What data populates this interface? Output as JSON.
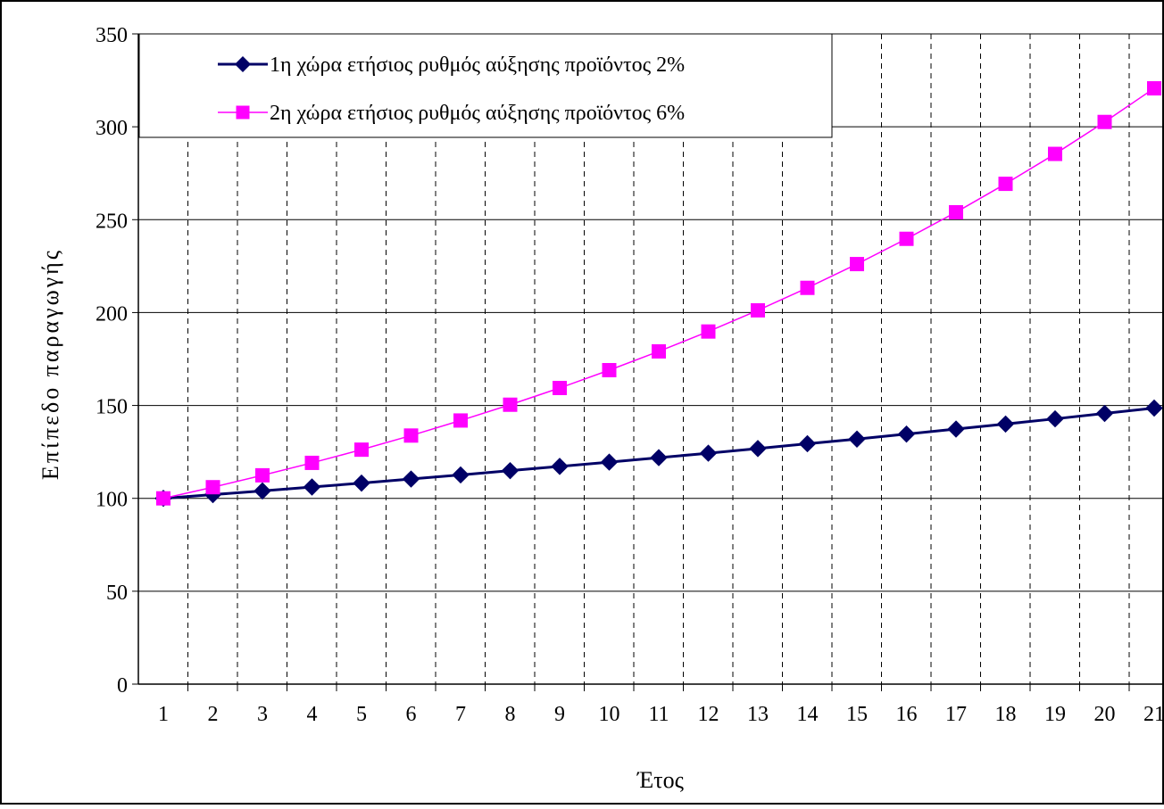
{
  "chart_data": {
    "type": "line",
    "xlabel": "Έτος",
    "ylabel": "Επίπεδο παραγωγής",
    "categories": [
      "1",
      "2",
      "3",
      "4",
      "5",
      "6",
      "7",
      "8",
      "9",
      "10",
      "11",
      "12",
      "13",
      "14",
      "15",
      "16",
      "17",
      "18",
      "19",
      "20",
      "21"
    ],
    "ylim": [
      0,
      350
    ],
    "yticks": [
      "0",
      "50",
      "100",
      "150",
      "200",
      "250",
      "300",
      "350"
    ],
    "grid": {
      "horizontal": "solid",
      "vertical": "dashed"
    },
    "legend_position": "top-left",
    "series": [
      {
        "name": "1η χώρα ετήσιος ρυθμός αύξησης προϊόντος 2%",
        "color": "#000066",
        "marker": "diamond",
        "values": [
          100,
          102,
          104,
          106.1,
          108.2,
          110.4,
          112.6,
          114.9,
          117.2,
          119.5,
          121.9,
          124.3,
          126.8,
          129.4,
          131.9,
          134.6,
          137.3,
          140,
          142.8,
          145.7,
          148.6
        ]
      },
      {
        "name": "2η χώρα ετήσιος ρυθμός αύξησης προϊόντος 6%",
        "color": "#ff00ff",
        "marker": "square",
        "values": [
          100,
          106,
          112.4,
          119.1,
          126.2,
          133.8,
          141.9,
          150.4,
          159.4,
          169,
          179.1,
          189.8,
          201.2,
          213.3,
          226.1,
          239.7,
          254,
          269.3,
          285.4,
          302.6,
          320.7
        ]
      }
    ]
  }
}
